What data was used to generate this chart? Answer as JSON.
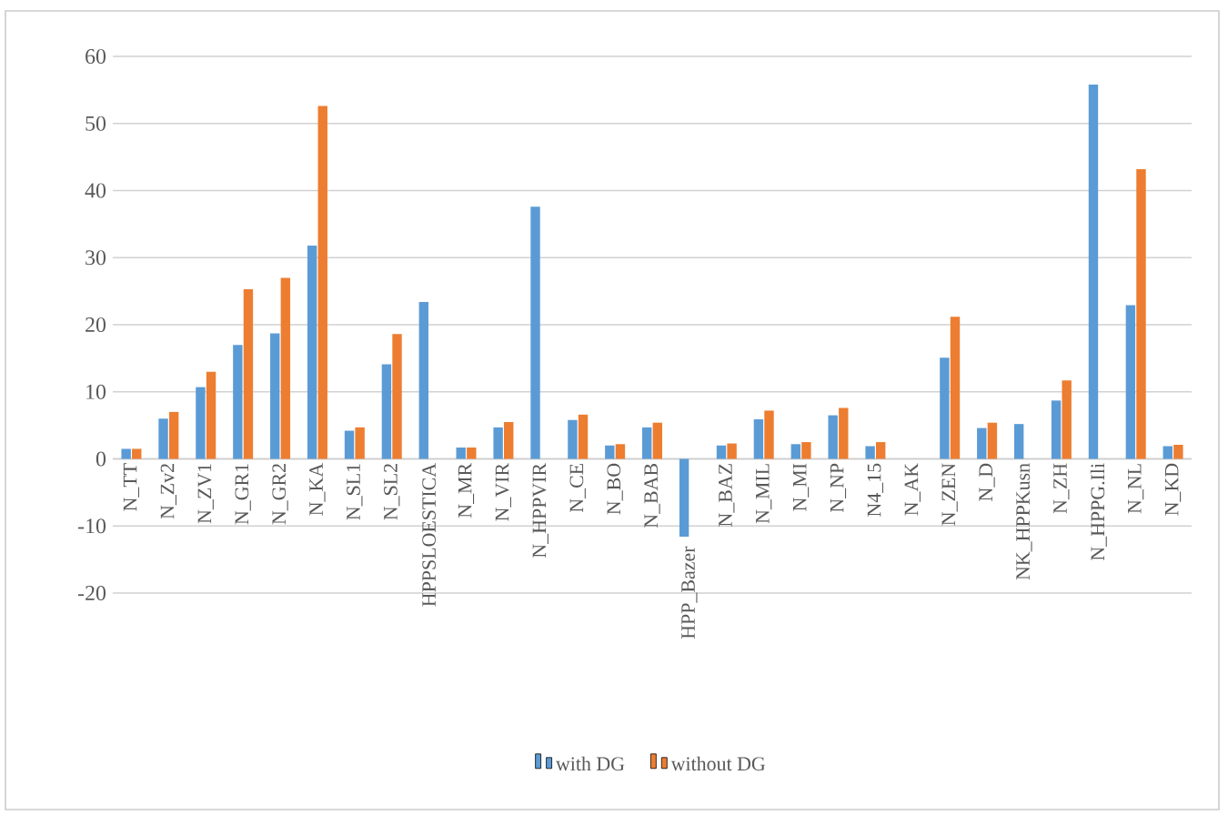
{
  "chart_data": {
    "type": "bar",
    "categories": [
      "N_TT",
      "N_Zv2",
      "N_ZV1",
      "N_GR1",
      "N_GR2",
      "N_KA",
      "N_SL1",
      "N_SL2",
      "HPPSLOESTICA",
      "N_MR",
      "N_VIR",
      "N_HPPVIR",
      "N_CE",
      "N_BO",
      "N_BAB",
      "HPP_Bazer",
      "N_BAZ",
      "N_MIL",
      "N_MI",
      "N_NP",
      "N4_15",
      "N_AK",
      "N_ZEN",
      "N_D",
      "NK_HPPKusn",
      "N_ZH",
      "N_HPPG.Ili",
      "N_NL",
      "N_KD"
    ],
    "series": [
      {
        "name": "with DG",
        "color": "#5b9bd5",
        "values": [
          1.5,
          6,
          10.7,
          17,
          18.7,
          31.8,
          4.2,
          14.1,
          23.4,
          1.7,
          4.7,
          37.6,
          5.8,
          2,
          4.7,
          -11.6,
          2,
          5.9,
          2.2,
          6.5,
          1.9,
          null,
          15.1,
          4.6,
          5.2,
          8.7,
          55.8,
          22.9,
          1.9
        ]
      },
      {
        "name": "without DG",
        "color": "#ed7d31",
        "values": [
          1.5,
          7,
          13,
          25.3,
          27,
          52.6,
          4.7,
          18.6,
          null,
          1.7,
          5.5,
          null,
          6.6,
          2.2,
          5.4,
          null,
          2.3,
          7.2,
          2.5,
          7.6,
          2.5,
          null,
          21.2,
          5.4,
          null,
          11.7,
          null,
          43.2,
          2.1
        ]
      }
    ],
    "ylim": [
      -20,
      60
    ],
    "yticks": [
      -20,
      -10,
      0,
      10,
      20,
      30,
      40,
      50,
      60
    ],
    "grid": "y",
    "legend": "bottom"
  }
}
